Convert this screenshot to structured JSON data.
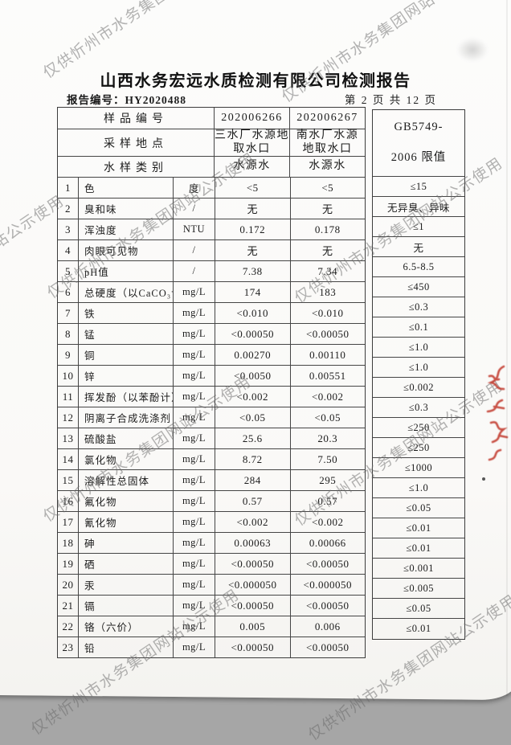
{
  "watermark": {
    "text": "仅供忻州市水务集团网站公示使用"
  },
  "header": {
    "title": "山西水务宏远水质检测有限公司检测报告",
    "report_no": "报告编号：HY2020488",
    "page": "第 2 页 共 12 页"
  },
  "table": {
    "meta": [
      {
        "label": "样品编号",
        "v1": "202006266",
        "v2": "202006267"
      },
      {
        "label": "采样地点",
        "v1": "三水厂水源地\n取水口",
        "v2": "南水厂水源\n地取水口"
      },
      {
        "label": "水样类别",
        "v1": "水源水",
        "v2": "水源水"
      }
    ],
    "limit_header": "GB5749-\n2006 限值",
    "rows": [
      {
        "no": "1",
        "name": "色",
        "unit": "度",
        "v1": "<5",
        "v2": "<5",
        "limit": "≤15"
      },
      {
        "no": "2",
        "name": "臭和味",
        "unit": "/",
        "v1": "无",
        "v2": "无",
        "limit": "无异臭、异味"
      },
      {
        "no": "3",
        "name": "浑浊度",
        "unit": "NTU",
        "v1": "0.172",
        "v2": "0.178",
        "limit": "≤1"
      },
      {
        "no": "4",
        "name": "肉眼可见物",
        "unit": "/",
        "v1": "无",
        "v2": "无",
        "limit": "无"
      },
      {
        "no": "5",
        "name": "pH值",
        "unit": "/",
        "v1": "7.38",
        "v2": "7.34",
        "limit": "6.5-8.5"
      },
      {
        "no": "6",
        "name": "总硬度（以CaCO₃计）",
        "unit": "mg/L",
        "v1": "174",
        "v2": "183",
        "limit": "≤450"
      },
      {
        "no": "7",
        "name": "铁",
        "unit": "mg/L",
        "v1": "<0.010",
        "v2": "<0.010",
        "limit": "≤0.3"
      },
      {
        "no": "8",
        "name": "锰",
        "unit": "mg/L",
        "v1": "<0.00050",
        "v2": "<0.00050",
        "limit": "≤0.1"
      },
      {
        "no": "9",
        "name": "铜",
        "unit": "mg/L",
        "v1": "0.00270",
        "v2": "0.00110",
        "limit": "≤1.0"
      },
      {
        "no": "10",
        "name": "锌",
        "unit": "mg/L",
        "v1": "<0.0050",
        "v2": "0.00551",
        "limit": "≤1.0"
      },
      {
        "no": "11",
        "name": "挥发酚（以苯酚计）",
        "unit": "mg/L",
        "v1": "<0.002",
        "v2": "<0.002",
        "limit": "≤0.002"
      },
      {
        "no": "12",
        "name": "阴离子合成洗涤剂",
        "unit": "mg/L",
        "v1": "<0.05",
        "v2": "<0.05",
        "limit": "≤0.3"
      },
      {
        "no": "13",
        "name": "硫酸盐",
        "unit": "mg/L",
        "v1": "25.6",
        "v2": "20.3",
        "limit": "≤250"
      },
      {
        "no": "14",
        "name": "氯化物",
        "unit": "mg/L",
        "v1": "8.72",
        "v2": "7.50",
        "limit": "≤250"
      },
      {
        "no": "15",
        "name": "溶解性总固体",
        "unit": "mg/L",
        "v1": "284",
        "v2": "295",
        "limit": "≤1000"
      },
      {
        "no": "16",
        "name": "氟化物",
        "unit": "mg/L",
        "v1": "0.57",
        "v2": "0.57",
        "limit": "≤1.0"
      },
      {
        "no": "17",
        "name": "氰化物",
        "unit": "mg/L",
        "v1": "<0.002",
        "v2": "<0.002",
        "limit": "≤0.05"
      },
      {
        "no": "18",
        "name": "砷",
        "unit": "mg/L",
        "v1": "0.00063",
        "v2": "0.00066",
        "limit": "≤0.01"
      },
      {
        "no": "19",
        "name": "硒",
        "unit": "mg/L",
        "v1": "<0.00050",
        "v2": "<0.00050",
        "limit": "≤0.01"
      },
      {
        "no": "20",
        "name": "汞",
        "unit": "mg/L",
        "v1": "<0.000050",
        "v2": "<0.000050",
        "limit": "≤0.001"
      },
      {
        "no": "21",
        "name": "镉",
        "unit": "mg/L",
        "v1": "<0.00050",
        "v2": "<0.00050",
        "limit": "≤0.005"
      },
      {
        "no": "22",
        "name": "铬（六价）",
        "unit": "mg/L",
        "v1": "0.005",
        "v2": "0.006",
        "limit": "≤0.05"
      },
      {
        "no": "23",
        "name": "铅",
        "unit": "mg/L",
        "v1": "<0.00050",
        "v2": "<0.00050",
        "limit": "≤0.01"
      }
    ]
  }
}
